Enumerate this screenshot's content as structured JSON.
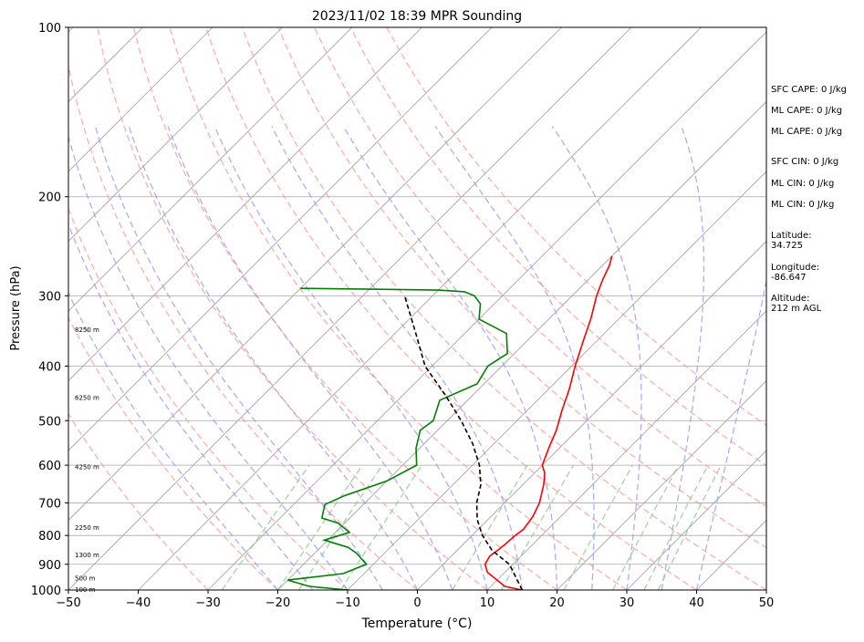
{
  "chart_data": {
    "type": "line",
    "subtype": "skew-t log-p sounding",
    "title": "2023/11/02 18:39 MPR Sounding",
    "xlabel": "Temperature (°C)",
    "ylabel": "Pressure (hPa)",
    "xlim": [
      -50,
      50
    ],
    "ylim": [
      1000,
      100
    ],
    "y_scale": "log",
    "grid": true,
    "x_ticks": [
      -50,
      -40,
      -30,
      -20,
      -10,
      0,
      10,
      20,
      30,
      40,
      50
    ],
    "x_tick_labels": [
      "−50",
      "−40",
      "−30",
      "−20",
      "−10",
      "0",
      "10",
      "20",
      "30",
      "40",
      "50"
    ],
    "y_ticks": [
      1000,
      900,
      800,
      700,
      600,
      500,
      400,
      300,
      200,
      100
    ],
    "y_tick_labels": [
      "1000",
      "900",
      "800",
      "700",
      "600",
      "500",
      "400",
      "300",
      "200",
      "100"
    ],
    "series": [
      {
        "color": "#ff0000",
        "x": [
          15.0,
          12.0,
          10.0,
          7.5,
          6.0,
          5.5,
          5.8,
          6.0,
          6.2,
          6.5,
          6.0,
          5.0,
          3.0,
          1.5,
          0.0,
          -1.5,
          -3.0,
          -5.0,
          -7.0,
          -9.5,
          -12.0,
          -14.0,
          -16.5,
          -18.0,
          -19.0,
          -20.0
        ],
        "y": [
          1000,
          985,
          960,
          930,
          900,
          870,
          850,
          830,
          800,
          780,
          740,
          700,
          650,
          620,
          600,
          560,
          520,
          480,
          440,
          400,
          360,
          330,
          300,
          280,
          265,
          255
        ]
      },
      {
        "color": "#008000",
        "x": [
          -10.0,
          -16.0,
          -20.0,
          -13.0,
          -11.0,
          -14.0,
          -16.0,
          -20.5,
          -18.0,
          -21.0,
          -24.0,
          -25.5,
          -24.0,
          -20.0,
          -18.0,
          -20.5,
          -22.5,
          -22.0,
          -24.0,
          -21.0,
          -22.0,
          -21.0,
          -24.0,
          -30.0,
          -32.0,
          -34.0,
          -36.0,
          -40.0,
          -50.0,
          -60.0
        ],
        "y": [
          1000,
          985,
          960,
          935,
          900,
          860,
          840,
          815,
          790,
          760,
          745,
          705,
          680,
          640,
          600,
          560,
          520,
          500,
          460,
          430,
          400,
          380,
          350,
          330,
          310,
          300,
          295,
          293,
          292,
          291
        ]
      },
      {
        "color": "#000000",
        "dashed": true,
        "x": [
          15.0,
          9.5,
          5.0,
          1.5,
          -1.5,
          -4.0,
          -6.0,
          -9.0,
          -13.0,
          -18.0,
          -24.0,
          -31.0,
          -37.0,
          -44.0
        ],
        "y": [
          1000,
          900,
          850,
          800,
          750,
          700,
          650,
          600,
          550,
          500,
          450,
          400,
          350,
          300
        ]
      }
    ],
    "height_labels": [
      {
        "text": "100 m",
        "pressure": 1000
      },
      {
        "text": "500 m",
        "pressure": 955
      },
      {
        "text": "1300 m",
        "pressure": 868
      },
      {
        "text": "2250 m",
        "pressure": 776
      },
      {
        "text": "4250 m",
        "pressure": 605
      },
      {
        "text": "6250 m",
        "pressure": 456
      },
      {
        "text": "8250 m",
        "pressure": 345
      }
    ],
    "background_lines": {
      "isotherms_color": "#a0a0a0",
      "dry_adiabats_color": "#ff9999",
      "moist_adiabats_color": "#9999ff",
      "mixing_ratio_color": "#88cc88",
      "dry_adiabat_surface_temps": [
        -30,
        -20,
        -10,
        0,
        10,
        20,
        30,
        40,
        50,
        60,
        70,
        80,
        90
      ],
      "moist_adiabat_surface_temps": [
        -20,
        -15,
        -10,
        -5,
        0,
        5,
        10,
        15,
        20,
        25,
        30,
        35,
        40
      ],
      "mixing_ratio_surface_temps": [
        -28,
        -20,
        -17,
        -11,
        5,
        12,
        21,
        28,
        32.5,
        34.5
      ]
    }
  },
  "indices": {
    "sfc_cape": "SFC CAPE: 0 J/kg",
    "ml_cape_1": "ML CAPE: 0 J/kg",
    "ml_cape_2": "ML CAPE: 0 J/kg",
    "sfc_cin": "SFC CIN: 0 J/kg",
    "ml_cin_1": "ML CIN: 0 J/kg",
    "ml_cin_2": "ML CIN: 0 J/kg"
  },
  "location": {
    "latitude": "Latitude:\n34.725",
    "longitude": "Longitude:\n-86.647",
    "altitude": "Altitude:\n212 m AGL"
  }
}
